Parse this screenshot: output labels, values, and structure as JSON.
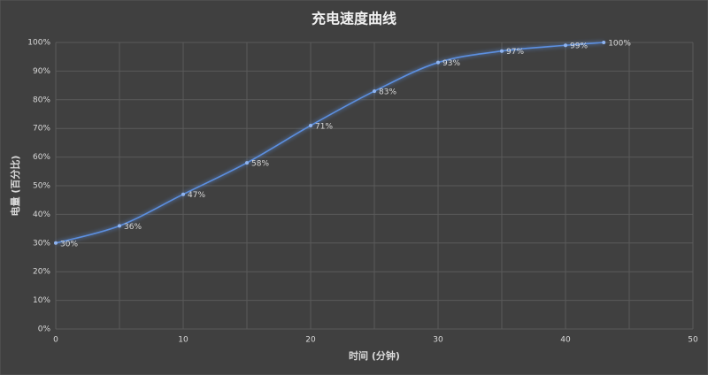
{
  "chart_data": {
    "type": "line",
    "title": "充电速度曲线",
    "xlabel": "时间 (分钟)",
    "ylabel": "电量 (百分比)",
    "x": [
      0,
      5,
      10,
      15,
      20,
      25,
      30,
      35,
      40,
      43
    ],
    "values": [
      30,
      36,
      47,
      58,
      71,
      83,
      93,
      97,
      99,
      100
    ],
    "value_labels": [
      "30%",
      "36%",
      "47%",
      "58%",
      "71%",
      "83%",
      "93%",
      "97%",
      "99%",
      "100%"
    ],
    "color": "#5b8fe0",
    "xlim": [
      0,
      50
    ],
    "xticks": [
      0,
      10,
      20,
      30,
      40,
      50
    ],
    "ylim": [
      0,
      100
    ],
    "yticks": [
      {
        "value": 0,
        "label": "0%"
      },
      {
        "value": 10,
        "label": "10%"
      },
      {
        "value": 20,
        "label": "20%"
      },
      {
        "value": 30,
        "label": "30%"
      },
      {
        "value": 40,
        "label": "40%"
      },
      {
        "value": 50,
        "label": "50%"
      },
      {
        "value": 60,
        "label": "60%"
      },
      {
        "value": 70,
        "label": "70%"
      },
      {
        "value": 80,
        "label": "80%"
      },
      {
        "value": 90,
        "label": "90%"
      },
      {
        "value": 100,
        "label": "100%"
      }
    ],
    "grid": true
  }
}
